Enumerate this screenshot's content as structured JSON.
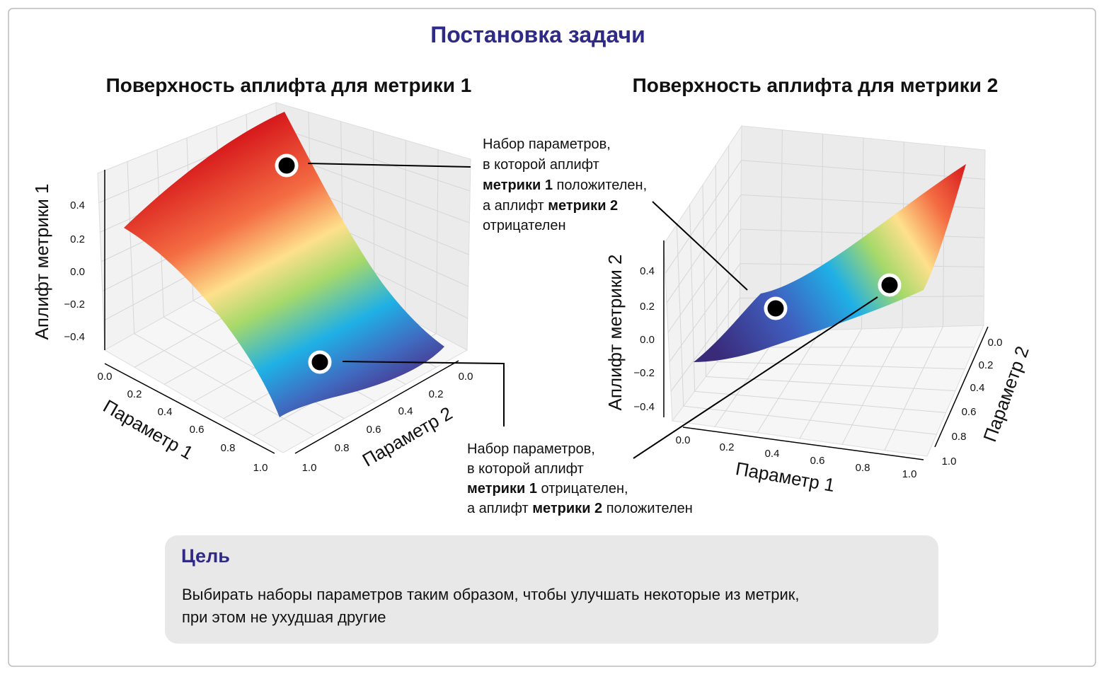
{
  "header": {
    "title": "Постановка задачи"
  },
  "panels": [
    {
      "title": "Поверхность аплифта для метрики 1",
      "z_axis_label": "Аплифт метрики 1",
      "x_axis_label": "Параметр 1",
      "y_axis_label": "Параметр 2",
      "z_ticks": [
        "0.4",
        "0.2",
        "0.0",
        "−0.2",
        "−0.4"
      ],
      "x_ticks": [
        "0.0",
        "0.2",
        "0.4",
        "0.6",
        "0.8",
        "1.0"
      ],
      "y_ticks": [
        "0.0",
        "0.2",
        "0.4",
        "0.6",
        "0.8",
        "1.0"
      ]
    },
    {
      "title": "Поверхность аплифта для метрики 2",
      "z_axis_label": "Аплифт метрики 2",
      "x_axis_label": "Параметр 1",
      "y_axis_label": "Параметр 2",
      "z_ticks": [
        "0.4",
        "0.2",
        "0.0",
        "−0.2",
        "−0.4"
      ],
      "x_ticks": [
        "0.0",
        "0.2",
        "0.4",
        "0.6",
        "0.8",
        "1.0"
      ],
      "y_ticks": [
        "0.0",
        "0.2",
        "0.4",
        "0.6",
        "0.8",
        "1.0"
      ]
    }
  ],
  "annotations": [
    {
      "lines": [
        [
          "Набор параметров,"
        ],
        [
          "в которой аплифт"
        ],
        [
          "метрики 1",
          " положителен,"
        ],
        [
          "а аплифт ",
          "метрики 2"
        ],
        [
          "отрицателен"
        ]
      ]
    },
    {
      "lines": [
        [
          "Набор параметров,"
        ],
        [
          "в которой аплифт"
        ],
        [
          "метрики 1",
          " отрицателен,"
        ],
        [
          "а аплифт ",
          "метрики 2",
          " положителен"
        ]
      ]
    }
  ],
  "goal": {
    "title": "Цель",
    "lines": [
      "Выбирать наборы параметров таким образом, чтобы улучшать некоторые из метрик,",
      "при этом не ухудшая другие"
    ]
  }
}
